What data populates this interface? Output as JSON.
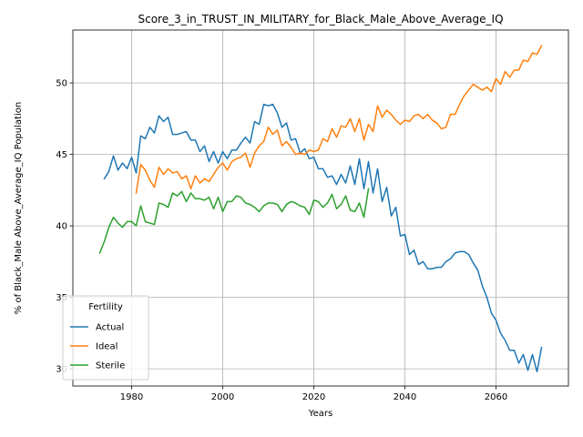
{
  "chart_data": {
    "type": "line",
    "title": "Score_3_in_TRUST_IN_MILITARY_for_Black_Male_Above_Average_IQ",
    "xlabel": "Years",
    "ylabel": "% of Black_Male Above_Average_IQ Population",
    "xlim": [
      1967.1,
      2075.9
    ],
    "ylim": [
      28.8,
      53.7
    ],
    "xticks": [
      1980,
      2000,
      2020,
      2040,
      2060
    ],
    "yticks": [
      30,
      35,
      40,
      45,
      50
    ],
    "grid": true,
    "legend": {
      "title": "Fertility",
      "position": "lower-left"
    },
    "series": [
      {
        "name": "Actual",
        "color": "#1f77b4",
        "x": [
          1974,
          1975,
          1976,
          1977,
          1978,
          1979,
          1980,
          1981,
          1982,
          1983,
          1984,
          1985,
          1986,
          1987,
          1988,
          1989,
          1990,
          1991,
          1992,
          1993,
          1994,
          1995,
          1996,
          1997,
          1998,
          1999,
          2000,
          2001,
          2002,
          2003,
          2004,
          2005,
          2006,
          2007,
          2008,
          2009,
          2010,
          2011,
          2012,
          2013,
          2014,
          2015,
          2016,
          2017,
          2018,
          2019,
          2020,
          2021,
          2022,
          2023,
          2024,
          2025,
          2026,
          2027,
          2028,
          2029,
          2030,
          2031,
          2032,
          2033,
          2034,
          2035,
          2036,
          2037,
          2038,
          2039,
          2040,
          2041,
          2042,
          2043,
          2044,
          2045,
          2046,
          2047,
          2048,
          2049,
          2050,
          2051,
          2052,
          2053,
          2054,
          2055,
          2056,
          2057,
          2058,
          2059,
          2060,
          2061,
          2062,
          2063,
          2064,
          2065,
          2066,
          2067,
          2068,
          2069,
          2070
        ],
        "values": [
          43.3,
          43.8,
          44.9,
          43.9,
          44.4,
          44.0,
          44.8,
          43.7,
          46.3,
          46.1,
          46.9,
          46.5,
          47.7,
          47.3,
          47.6,
          46.4,
          46.4,
          46.5,
          46.6,
          46.0,
          46.0,
          45.2,
          45.6,
          44.5,
          45.2,
          44.4,
          45.2,
          44.7,
          45.3,
          45.3,
          45.8,
          46.2,
          45.8,
          47.3,
          47.1,
          48.5,
          48.4,
          48.5,
          47.9,
          46.9,
          47.2,
          46.0,
          46.1,
          45.1,
          45.4,
          44.7,
          44.8,
          44.0,
          44.0,
          43.4,
          43.5,
          42.9,
          43.6,
          43.0,
          44.2,
          42.9,
          44.7,
          42.6,
          44.5,
          42.3,
          44.0,
          41.7,
          42.7,
          40.7,
          41.3,
          39.3,
          39.4,
          38.0,
          38.3,
          37.3,
          37.5,
          37.0,
          37.0,
          37.1,
          37.1,
          37.5,
          37.7,
          38.1,
          38.2,
          38.2,
          38.0,
          37.4,
          36.9,
          35.8,
          35.0,
          33.9,
          33.4,
          32.5,
          32.0,
          31.3,
          31.3,
          30.4,
          31.0,
          29.9,
          31.0,
          29.8,
          31.5
        ]
      },
      {
        "name": "Ideal",
        "color": "#ff7f0e",
        "x": [
          1981,
          1982,
          1983,
          1984,
          1985,
          1986,
          1987,
          1988,
          1989,
          1990,
          1991,
          1992,
          1993,
          1994,
          1995,
          1996,
          1997,
          1998,
          1999,
          2000,
          2001,
          2002,
          2003,
          2004,
          2005,
          2006,
          2007,
          2008,
          2009,
          2010,
          2011,
          2012,
          2013,
          2014,
          2015,
          2016,
          2017,
          2018,
          2019,
          2020,
          2021,
          2022,
          2023,
          2024,
          2025,
          2026,
          2027,
          2028,
          2029,
          2030,
          2031,
          2032,
          2033,
          2034,
          2035,
          2036,
          2037,
          2038,
          2039,
          2040,
          2041,
          2042,
          2043,
          2044,
          2045,
          2046,
          2047,
          2048,
          2049,
          2050,
          2051,
          2052,
          2053,
          2054,
          2055,
          2056,
          2057,
          2058,
          2059,
          2060,
          2061,
          2062,
          2063,
          2064,
          2065,
          2066,
          2067,
          2068,
          2069,
          2070
        ],
        "values": [
          42.3,
          44.3,
          43.9,
          43.2,
          42.7,
          44.1,
          43.6,
          44.0,
          43.7,
          43.8,
          43.3,
          43.5,
          42.6,
          43.5,
          43.0,
          43.3,
          43.1,
          43.6,
          44.1,
          44.4,
          43.9,
          44.5,
          44.7,
          44.8,
          45.1,
          44.1,
          45.1,
          45.6,
          45.9,
          46.9,
          46.4,
          46.7,
          45.6,
          45.9,
          45.5,
          45.0,
          45.1,
          45.0,
          45.3,
          45.2,
          45.3,
          46.1,
          45.9,
          46.8,
          46.2,
          47.0,
          46.9,
          47.5,
          46.6,
          47.5,
          46.0,
          47.1,
          46.6,
          48.4,
          47.6,
          48.1,
          47.8,
          47.4,
          47.1,
          47.4,
          47.3,
          47.7,
          47.8,
          47.5,
          47.8,
          47.4,
          47.2,
          46.8,
          46.9,
          47.8,
          47.8,
          48.5,
          49.1,
          49.5,
          49.9,
          49.7,
          49.5,
          49.7,
          49.4,
          50.3,
          49.9,
          50.8,
          50.4,
          50.9,
          50.9,
          51.6,
          51.5,
          52.1,
          52.0,
          52.6
        ]
      },
      {
        "name": "Sterile",
        "color": "#2ca02c",
        "x": [
          1973,
          1974,
          1975,
          1976,
          1977,
          1978,
          1979,
          1980,
          1981,
          1982,
          1983,
          1984,
          1985,
          1986,
          1987,
          1988,
          1989,
          1990,
          1991,
          1992,
          1993,
          1994,
          1995,
          1996,
          1997,
          1998,
          1999,
          2000,
          2001,
          2002,
          2003,
          2004,
          2005,
          2006,
          2007,
          2008,
          2009,
          2010,
          2011,
          2012,
          2013,
          2014,
          2015,
          2016,
          2017,
          2018,
          2019,
          2020,
          2021,
          2022,
          2023,
          2024,
          2025,
          2026,
          2027,
          2028,
          2029,
          2030,
          2031,
          2032
        ],
        "values": [
          38.1,
          38.9,
          39.9,
          40.6,
          40.2,
          39.9,
          40.3,
          40.3,
          40.0,
          41.4,
          40.3,
          40.2,
          40.1,
          41.6,
          41.5,
          41.3,
          42.3,
          42.1,
          42.4,
          41.7,
          42.3,
          41.9,
          41.9,
          41.8,
          42.0,
          41.2,
          42.0,
          41.0,
          41.7,
          41.7,
          42.1,
          42.0,
          41.6,
          41.5,
          41.3,
          41.0,
          41.4,
          41.6,
          41.6,
          41.5,
          41.0,
          41.5,
          41.7,
          41.6,
          41.4,
          41.3,
          40.8,
          41.8,
          41.7,
          41.3,
          41.6,
          42.2,
          41.2,
          41.5,
          42.1,
          41.1,
          41.0,
          41.6,
          40.6,
          42.6
        ]
      }
    ]
  }
}
